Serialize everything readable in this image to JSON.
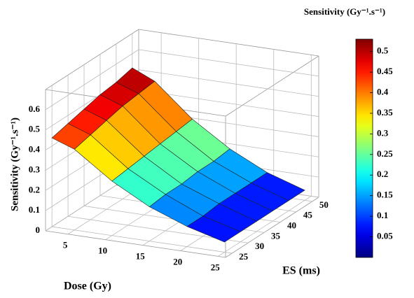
{
  "chart_data": {
    "type": "surface",
    "xlabel": "Dose (Gy)",
    "ylabel": "ES (ms)",
    "zlabel": "Sensitivity (Gy⁻¹.s⁻¹)",
    "colorbar_label": "Sensitivity (Gy⁻¹.s⁻¹)",
    "x": [
      2,
      5,
      10,
      15,
      20,
      25
    ],
    "y": [
      25,
      30,
      35,
      40,
      45,
      50
    ],
    "z": [
      [
        0.44,
        0.4,
        0.27,
        0.17,
        0.1,
        0.05
      ],
      [
        0.46,
        0.42,
        0.28,
        0.18,
        0.1,
        0.05
      ],
      [
        0.48,
        0.44,
        0.29,
        0.18,
        0.11,
        0.05
      ],
      [
        0.5,
        0.46,
        0.3,
        0.19,
        0.11,
        0.05
      ],
      [
        0.51,
        0.47,
        0.31,
        0.19,
        0.11,
        0.05
      ],
      [
        0.53,
        0.48,
        0.32,
        0.2,
        0.11,
        0.05
      ]
    ],
    "xlim": [
      2,
      26
    ],
    "ylim": [
      23,
      52
    ],
    "zlim": [
      0,
      0.7
    ],
    "xticks": [
      5,
      10,
      15,
      20,
      25
    ],
    "yticks": [
      25,
      30,
      35,
      40,
      45,
      50
    ],
    "zticks": [
      0,
      0.1,
      0.2,
      0.3,
      0.4,
      0.5,
      0.6
    ],
    "clim": [
      0,
      0.53
    ],
    "cticks": [
      0.05,
      0.1,
      0.15,
      0.2,
      0.25,
      0.3,
      0.35,
      0.4,
      0.45,
      0.5
    ],
    "colormap": "jet",
    "grid": true
  }
}
